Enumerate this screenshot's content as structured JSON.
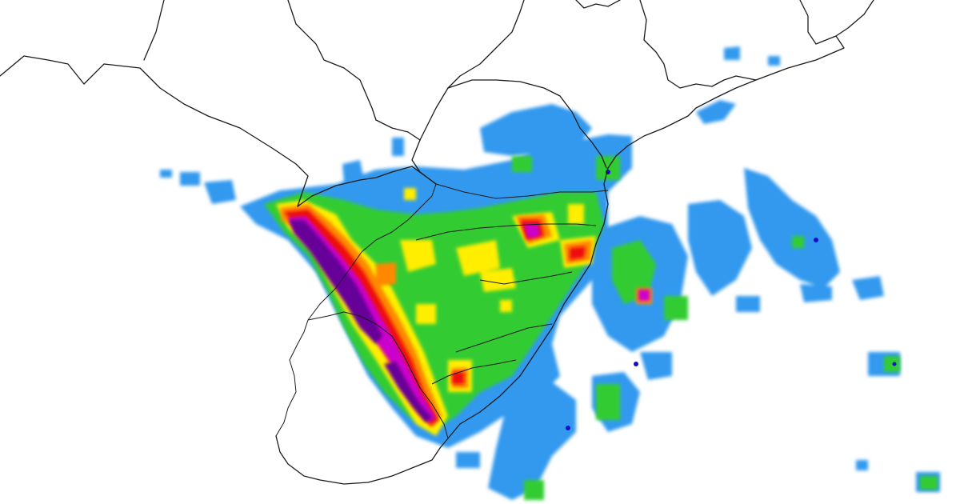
{
  "map": {
    "background_color": "#ffffff",
    "border_color": "#1a1a1a",
    "precip_color_scale": [
      "#3399ee",
      "#33cc33",
      "#ffee00",
      "#ff8800",
      "#ee1111",
      "#cc00cc",
      "#660099",
      "#1111cc"
    ]
  }
}
